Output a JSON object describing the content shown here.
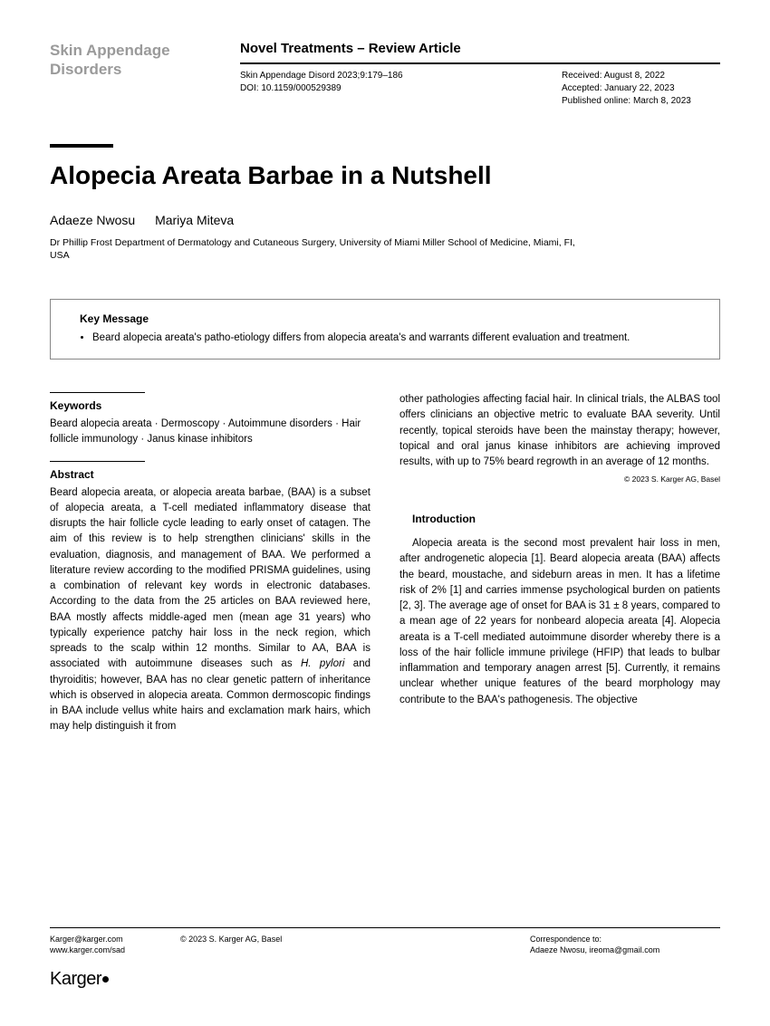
{
  "journal_name": "Skin Appendage Disorders",
  "article_type": "Novel Treatments – Review Article",
  "citation": "Skin Appendage Disord 2023;9:179–186",
  "doi": "DOI: 10.1159/000529389",
  "dates": {
    "received": "Received: August 8, 2022",
    "accepted": "Accepted: January 22, 2023",
    "published": "Published online: March 8, 2023"
  },
  "title": "Alopecia Areata Barbae in a Nutshell",
  "authors": [
    "Adaeze Nwosu",
    "Mariya Miteva"
  ],
  "affiliation": "Dr Phillip Frost Department of Dermatology and Cutaneous Surgery, University of Miami Miller School of Medicine, Miami, FI, USA",
  "key_message": {
    "title": "Key Message",
    "text": "Beard alopecia areata's patho-etiology differs from alopecia areata's and warrants different evaluation and treatment."
  },
  "keywords": {
    "heading": "Keywords",
    "text": "Beard alopecia areata · Dermoscopy · Autoimmune disorders · Hair follicle immunology · Janus kinase inhibitors"
  },
  "abstract": {
    "heading": "Abstract",
    "col1": "Beard alopecia areata, or alopecia areata barbae, (BAA) is a subset of alopecia areata, a T-cell mediated inflammatory disease that disrupts the hair follicle cycle leading to early onset of catagen. The aim of this review is to help strengthen clinicians' skills in the evaluation, diagnosis, and management of BAA. We performed a literature review according to the modified PRISMA guidelines, using a combination of relevant key words in electronic databases. According to the data from the 25 articles on BAA reviewed here, BAA mostly affects middle-aged men (mean age 31 years) who typically experience patchy hair loss in the neck region, which spreads to the scalp within 12 months. Similar to AA, BAA is associated with autoimmune diseases such as H. pylori and thyroiditis; however, BAA has no clear genetic pattern of inheritance which is observed in alopecia areata. Common dermoscopic findings in BAA include vellus white hairs and exclamation mark hairs, which may help distinguish it from",
    "col2": "other pathologies affecting facial hair. In clinical trials, the ALBAS tool offers clinicians an objective metric to evaluate BAA severity. Until recently, topical steroids have been the mainstay therapy; however, topical and oral janus kinase inhibitors are achieving improved results, with up to 75% beard regrowth in an average of 12 months."
  },
  "copyright_inline": "© 2023 S. Karger AG, Basel",
  "introduction": {
    "heading": "Introduction",
    "text": "Alopecia areata is the second most prevalent hair loss in men, after androgenetic alopecia [1]. Beard alopecia areata (BAA) affects the beard, moustache, and sideburn areas in men. It has a lifetime risk of 2% [1] and carries immense psychological burden on patients [2, 3]. The average age of onset for BAA is 31 ± 8 years, compared to a mean age of 22 years for nonbeard alopecia areata [4]. Alopecia areata is a T-cell mediated autoimmune disorder whereby there is a loss of the hair follicle immune privilege (HFIP) that leads to bulbar inflammation and temporary anagen arrest [5]. Currently, it remains unclear whether unique features of the beard morphology may contribute to the BAA's pathogenesis. The objective"
  },
  "footer": {
    "email": "Karger@karger.com",
    "url": "www.karger.com/sad",
    "copyright": "© 2023 S. Karger AG, Basel",
    "correspondence_label": "Correspondence to:",
    "correspondence_name": "Adaeze Nwosu, ireoma@gmail.com",
    "logo": "Karger"
  }
}
